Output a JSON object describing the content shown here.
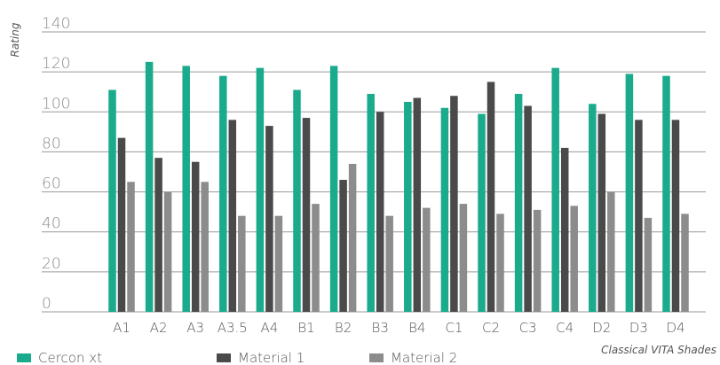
{
  "chart_data": {
    "type": "bar",
    "title": "",
    "xlabel": "Classical VITA Shades",
    "ylabel": "Rating",
    "ylim": [
      0,
      140
    ],
    "yticks": [
      "0",
      "20",
      "40",
      "60",
      "80",
      "100",
      "120",
      "140"
    ],
    "grid": true,
    "legend_position": "bottom-left",
    "categories": [
      "A1",
      "A2",
      "A3",
      "A3.5",
      "A4",
      "B1",
      "B2",
      "B3",
      "B4",
      "C1",
      "C2",
      "C3",
      "C4",
      "D2",
      "D3",
      "D4"
    ],
    "series": [
      {
        "name": "Cercon xt",
        "color": "#1aaa8c",
        "values": [
          111,
          125,
          123,
          118,
          122,
          111,
          123,
          109,
          105,
          102,
          99,
          109,
          122,
          104,
          119,
          118
        ]
      },
      {
        "name": "Material 1",
        "color": "#4a4a4a",
        "values": [
          87,
          77,
          75,
          96,
          93,
          97,
          66,
          100,
          107,
          108,
          115,
          103,
          82,
          99,
          96,
          96
        ]
      },
      {
        "name": "Material 2",
        "color": "#8c8c8c",
        "values": [
          65,
          60,
          65,
          48,
          48,
          54,
          74,
          48,
          52,
          54,
          49,
          51,
          53,
          60,
          47,
          49
        ]
      }
    ]
  }
}
